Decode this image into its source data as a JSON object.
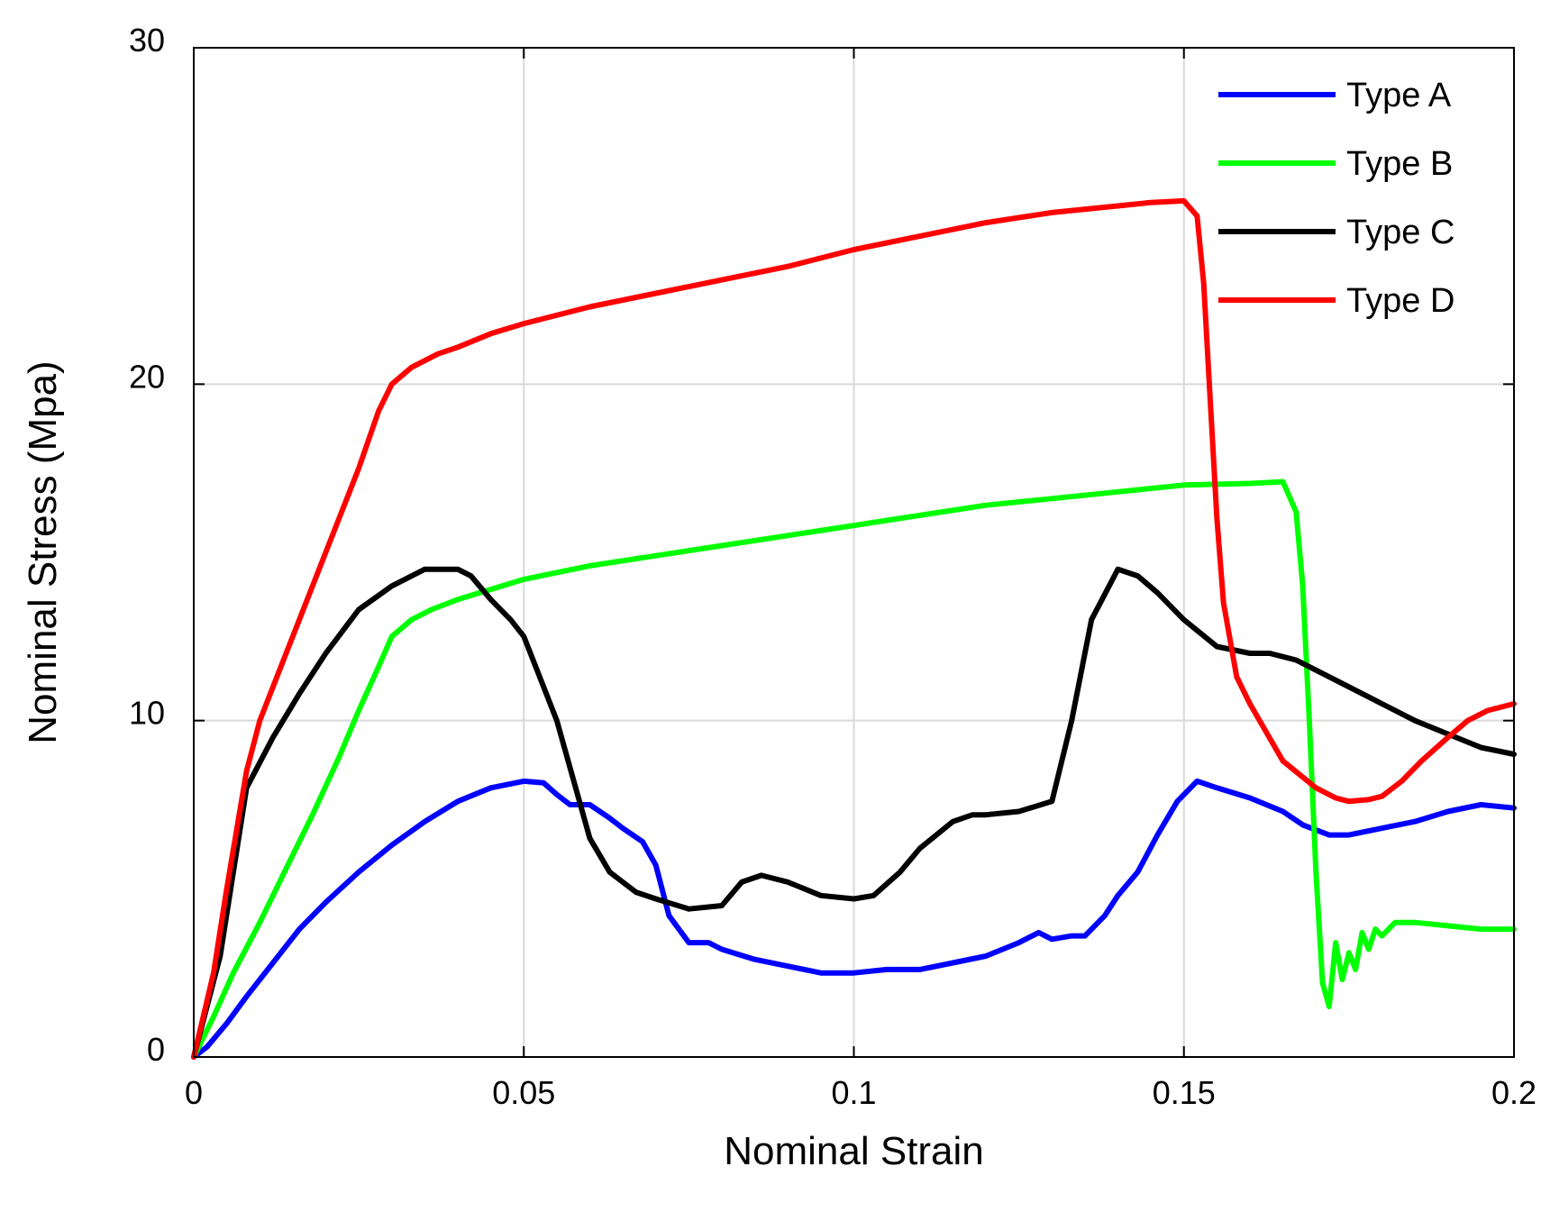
{
  "chart_data": {
    "type": "line",
    "title": "",
    "xlabel": "Nominal Strain",
    "ylabel": "Nominal Stress (Mpa)",
    "xlim": [
      0,
      0.2
    ],
    "ylim": [
      0,
      30
    ],
    "xticks": [
      0,
      0.05,
      0.1,
      0.15,
      0.2
    ],
    "xtick_labels": [
      "0",
      "0.05",
      "0.1",
      "0.15",
      "0.2"
    ],
    "yticks": [
      0,
      10,
      20,
      30
    ],
    "ytick_labels": [
      "0",
      "10",
      "20",
      "30"
    ],
    "grid": true,
    "legend_position": "top-right",
    "series": [
      {
        "name": "Type A",
        "color": "#0000ff",
        "x": [
          0,
          0.002,
          0.005,
          0.008,
          0.012,
          0.016,
          0.02,
          0.025,
          0.03,
          0.035,
          0.04,
          0.045,
          0.05,
          0.053,
          0.055,
          0.057,
          0.06,
          0.063,
          0.065,
          0.068,
          0.07,
          0.072,
          0.075,
          0.078,
          0.08,
          0.085,
          0.09,
          0.095,
          0.1,
          0.105,
          0.11,
          0.115,
          0.12,
          0.125,
          0.128,
          0.13,
          0.133,
          0.135,
          0.138,
          0.14,
          0.143,
          0.146,
          0.149,
          0.152,
          0.155,
          0.16,
          0.165,
          0.168,
          0.172,
          0.175,
          0.18,
          0.185,
          0.19,
          0.195,
          0.2
        ],
        "y": [
          0,
          0.3,
          1.0,
          1.8,
          2.8,
          3.8,
          4.6,
          5.5,
          6.3,
          7.0,
          7.6,
          8.0,
          8.2,
          8.15,
          7.8,
          7.5,
          7.5,
          7.1,
          6.8,
          6.4,
          5.7,
          4.2,
          3.4,
          3.4,
          3.2,
          2.9,
          2.7,
          2.5,
          2.5,
          2.6,
          2.6,
          2.8,
          3.0,
          3.4,
          3.7,
          3.5,
          3.6,
          3.6,
          4.2,
          4.8,
          5.5,
          6.6,
          7.6,
          8.2,
          8.0,
          7.7,
          7.3,
          6.9,
          6.6,
          6.6,
          6.8,
          7.0,
          7.3,
          7.5,
          7.4
        ]
      },
      {
        "name": "Type B",
        "color": "#00ff00",
        "x": [
          0,
          0.003,
          0.006,
          0.01,
          0.014,
          0.018,
          0.022,
          0.025,
          0.028,
          0.03,
          0.033,
          0.036,
          0.04,
          0.05,
          0.06,
          0.07,
          0.08,
          0.09,
          0.1,
          0.11,
          0.12,
          0.13,
          0.14,
          0.15,
          0.16,
          0.165,
          0.167,
          0.168,
          0.169,
          0.17,
          0.171,
          0.172,
          0.173,
          0.174,
          0.175,
          0.176,
          0.177,
          0.178,
          0.179,
          0.18,
          0.182,
          0.185,
          0.19,
          0.195,
          0.2
        ],
        "y": [
          0,
          1.2,
          2.5,
          4.0,
          5.6,
          7.2,
          8.9,
          10.3,
          11.6,
          12.5,
          13.0,
          13.3,
          13.6,
          14.2,
          14.6,
          14.9,
          15.2,
          15.5,
          15.8,
          16.1,
          16.4,
          16.6,
          16.8,
          17.0,
          17.05,
          17.1,
          16.2,
          14.0,
          10.0,
          5.5,
          2.2,
          1.5,
          3.4,
          2.3,
          3.1,
          2.6,
          3.7,
          3.2,
          3.8,
          3.6,
          4.0,
          4.0,
          3.9,
          3.8,
          3.8
        ]
      },
      {
        "name": "Type C",
        "color": "#000000",
        "x": [
          0,
          0.004,
          0.008,
          0.012,
          0.016,
          0.02,
          0.025,
          0.03,
          0.035,
          0.04,
          0.042,
          0.045,
          0.048,
          0.05,
          0.055,
          0.06,
          0.063,
          0.067,
          0.07,
          0.075,
          0.08,
          0.083,
          0.086,
          0.09,
          0.095,
          0.1,
          0.103,
          0.107,
          0.11,
          0.115,
          0.118,
          0.12,
          0.125,
          0.13,
          0.133,
          0.136,
          0.14,
          0.143,
          0.146,
          0.15,
          0.155,
          0.16,
          0.163,
          0.167,
          0.17,
          0.175,
          0.18,
          0.185,
          0.19,
          0.195,
          0.2
        ],
        "y": [
          0,
          3.0,
          8.0,
          9.5,
          10.8,
          12.0,
          13.3,
          14.0,
          14.5,
          14.5,
          14.3,
          13.6,
          13.0,
          12.5,
          10.0,
          6.5,
          5.5,
          4.9,
          4.7,
          4.4,
          4.5,
          5.2,
          5.4,
          5.2,
          4.8,
          4.7,
          4.8,
          5.5,
          6.2,
          7.0,
          7.2,
          7.2,
          7.3,
          7.6,
          10.0,
          13.0,
          14.5,
          14.3,
          13.8,
          13.0,
          12.2,
          12.0,
          12.0,
          11.8,
          11.5,
          11.0,
          10.5,
          10.0,
          9.6,
          9.2,
          9.0
        ]
      },
      {
        "name": "Type D",
        "color": "#ff0000",
        "x": [
          0,
          0.003,
          0.005,
          0.008,
          0.01,
          0.013,
          0.017,
          0.021,
          0.025,
          0.028,
          0.03,
          0.033,
          0.037,
          0.04,
          0.045,
          0.05,
          0.06,
          0.07,
          0.08,
          0.09,
          0.1,
          0.11,
          0.12,
          0.13,
          0.14,
          0.145,
          0.15,
          0.152,
          0.153,
          0.154,
          0.155,
          0.156,
          0.158,
          0.16,
          0.165,
          0.17,
          0.173,
          0.175,
          0.178,
          0.18,
          0.183,
          0.186,
          0.19,
          0.193,
          0.196,
          0.2
        ],
        "y": [
          0,
          2.5,
          5.0,
          8.5,
          10.0,
          11.5,
          13.5,
          15.5,
          17.5,
          19.2,
          20.0,
          20.5,
          20.9,
          21.1,
          21.5,
          21.8,
          22.3,
          22.7,
          23.1,
          23.5,
          24.0,
          24.4,
          24.8,
          25.1,
          25.3,
          25.4,
          25.45,
          25.0,
          23.0,
          19.5,
          16.0,
          13.5,
          11.3,
          10.5,
          8.8,
          8.0,
          7.7,
          7.6,
          7.65,
          7.75,
          8.2,
          8.8,
          9.5,
          10.0,
          10.3,
          10.5
        ]
      }
    ]
  }
}
